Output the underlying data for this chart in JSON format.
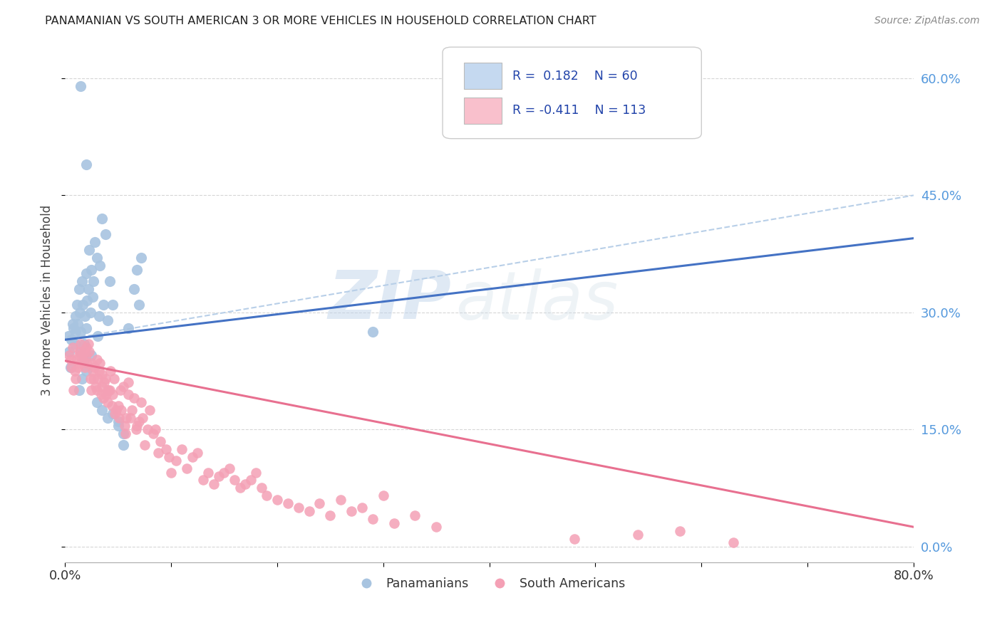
{
  "title": "PANAMANIAN VS SOUTH AMERICAN 3 OR MORE VEHICLES IN HOUSEHOLD CORRELATION CHART",
  "source": "Source: ZipAtlas.com",
  "ylabel": "3 or more Vehicles in Household",
  "watermark_zip": "ZIP",
  "watermark_atlas": "atlas",
  "xlim": [
    0.0,
    0.8
  ],
  "ylim": [
    -0.02,
    0.65
  ],
  "yticks_right": [
    0.0,
    0.15,
    0.3,
    0.45,
    0.6
  ],
  "yticklabels_right": [
    "0.0%",
    "15.0%",
    "30.0%",
    "45.0%",
    "60.0%"
  ],
  "color_pan": "#a8c4e0",
  "color_sam": "#f4a0b5",
  "line_color_pan": "#4472c4",
  "line_color_sam": "#e87090",
  "line_color_dashed": "#b8cfe8",
  "legend_box_color_pan": "#c5d9f0",
  "legend_box_color_sam": "#f9c0cc",
  "background_color": "#ffffff",
  "pan_scatter_x": [
    0.003,
    0.004,
    0.005,
    0.006,
    0.007,
    0.008,
    0.009,
    0.01,
    0.01,
    0.011,
    0.012,
    0.013,
    0.014,
    0.015,
    0.015,
    0.016,
    0.017,
    0.018,
    0.019,
    0.02,
    0.02,
    0.021,
    0.022,
    0.023,
    0.024,
    0.025,
    0.026,
    0.027,
    0.028,
    0.03,
    0.031,
    0.032,
    0.033,
    0.035,
    0.036,
    0.038,
    0.04,
    0.042,
    0.045,
    0.05,
    0.055,
    0.06,
    0.065,
    0.068,
    0.07,
    0.072,
    0.013,
    0.016,
    0.018,
    0.02,
    0.29,
    0.015,
    0.02,
    0.025,
    0.03,
    0.035,
    0.04,
    0.045,
    0.05,
    0.055
  ],
  "pan_scatter_y": [
    0.27,
    0.25,
    0.23,
    0.265,
    0.285,
    0.28,
    0.26,
    0.295,
    0.275,
    0.31,
    0.285,
    0.33,
    0.3,
    0.25,
    0.275,
    0.34,
    0.31,
    0.26,
    0.295,
    0.28,
    0.35,
    0.315,
    0.33,
    0.38,
    0.3,
    0.355,
    0.32,
    0.34,
    0.39,
    0.37,
    0.27,
    0.295,
    0.36,
    0.42,
    0.31,
    0.4,
    0.29,
    0.34,
    0.31,
    0.16,
    0.13,
    0.28,
    0.33,
    0.355,
    0.31,
    0.37,
    0.2,
    0.215,
    0.24,
    0.225,
    0.275,
    0.59,
    0.49,
    0.245,
    0.185,
    0.175,
    0.165,
    0.17,
    0.155,
    0.145
  ],
  "sam_scatter_x": [
    0.004,
    0.005,
    0.006,
    0.007,
    0.008,
    0.009,
    0.01,
    0.011,
    0.012,
    0.013,
    0.014,
    0.015,
    0.015,
    0.016,
    0.017,
    0.018,
    0.019,
    0.02,
    0.02,
    0.021,
    0.022,
    0.023,
    0.024,
    0.025,
    0.025,
    0.026,
    0.027,
    0.028,
    0.029,
    0.03,
    0.03,
    0.031,
    0.032,
    0.033,
    0.034,
    0.035,
    0.035,
    0.036,
    0.037,
    0.038,
    0.039,
    0.04,
    0.04,
    0.041,
    0.042,
    0.043,
    0.044,
    0.045,
    0.046,
    0.047,
    0.048,
    0.05,
    0.051,
    0.052,
    0.053,
    0.055,
    0.056,
    0.057,
    0.058,
    0.06,
    0.06,
    0.062,
    0.063,
    0.065,
    0.067,
    0.068,
    0.07,
    0.072,
    0.073,
    0.075,
    0.078,
    0.08,
    0.083,
    0.085,
    0.088,
    0.09,
    0.095,
    0.098,
    0.1,
    0.105,
    0.11,
    0.115,
    0.12,
    0.125,
    0.13,
    0.135,
    0.14,
    0.145,
    0.15,
    0.155,
    0.16,
    0.165,
    0.17,
    0.175,
    0.18,
    0.185,
    0.19,
    0.2,
    0.21,
    0.22,
    0.23,
    0.24,
    0.25,
    0.26,
    0.27,
    0.28,
    0.29,
    0.3,
    0.31,
    0.33,
    0.35,
    0.48,
    0.54,
    0.58,
    0.63
  ],
  "sam_scatter_y": [
    0.245,
    0.24,
    0.23,
    0.255,
    0.2,
    0.225,
    0.215,
    0.24,
    0.23,
    0.245,
    0.25,
    0.235,
    0.26,
    0.245,
    0.24,
    0.25,
    0.23,
    0.245,
    0.255,
    0.235,
    0.26,
    0.25,
    0.215,
    0.2,
    0.235,
    0.225,
    0.215,
    0.23,
    0.205,
    0.24,
    0.2,
    0.215,
    0.225,
    0.235,
    0.195,
    0.22,
    0.205,
    0.19,
    0.21,
    0.215,
    0.195,
    0.185,
    0.2,
    0.2,
    0.2,
    0.225,
    0.18,
    0.195,
    0.215,
    0.17,
    0.175,
    0.18,
    0.165,
    0.2,
    0.175,
    0.205,
    0.155,
    0.145,
    0.165,
    0.195,
    0.21,
    0.165,
    0.175,
    0.19,
    0.15,
    0.155,
    0.16,
    0.185,
    0.165,
    0.13,
    0.15,
    0.175,
    0.145,
    0.15,
    0.12,
    0.135,
    0.125,
    0.115,
    0.095,
    0.11,
    0.125,
    0.1,
    0.115,
    0.12,
    0.085,
    0.095,
    0.08,
    0.09,
    0.095,
    0.1,
    0.085,
    0.075,
    0.08,
    0.085,
    0.095,
    0.075,
    0.065,
    0.06,
    0.055,
    0.05,
    0.045,
    0.055,
    0.04,
    0.06,
    0.045,
    0.05,
    0.035,
    0.065,
    0.03,
    0.04,
    0.025,
    0.01,
    0.015,
    0.02,
    0.005
  ],
  "pan_line_x": [
    0.0,
    0.8
  ],
  "pan_line_y": [
    0.265,
    0.395
  ],
  "sam_line_x": [
    0.0,
    0.8
  ],
  "sam_line_y": [
    0.238,
    0.025
  ],
  "dashed_line_x": [
    0.0,
    0.8
  ],
  "dashed_line_y": [
    0.265,
    0.45
  ]
}
